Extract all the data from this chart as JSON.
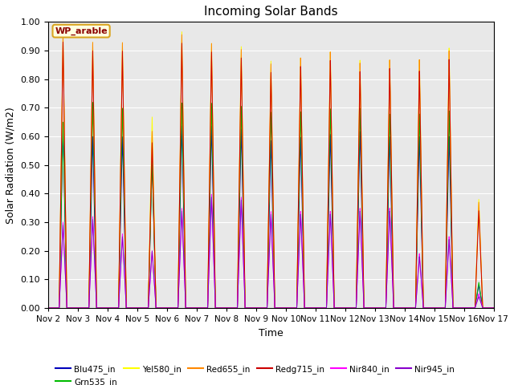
{
  "title": "Incoming Solar Bands",
  "xlabel": "Time",
  "ylabel": "Solar Radiation (W/m2)",
  "ylim": [
    0.0,
    1.0
  ],
  "yticks": [
    0.0,
    0.1,
    0.2,
    0.3,
    0.4,
    0.5,
    0.6,
    0.7,
    0.8,
    0.9,
    1.0
  ],
  "annotation_text": "WP_arable",
  "bg_color": "#e8e8e8",
  "legend_entries": [
    {
      "label": "Blu475_in",
      "color": "#0000bb"
    },
    {
      "label": "Grn535_in",
      "color": "#00bb00"
    },
    {
      "label": "Yel580_in",
      "color": "#ffff00"
    },
    {
      "label": "Red655_in",
      "color": "#ff8800"
    },
    {
      "label": "Redg715_in",
      "color": "#cc0000"
    },
    {
      "label": "Nir840_in",
      "color": "#ff00ff"
    },
    {
      "label": "Nir945_in",
      "color": "#8800cc"
    }
  ],
  "num_days": 15,
  "start_day": 2,
  "day_peak_values": {
    "Blu475_in": [
      0.63,
      0.6,
      0.6,
      0.53,
      0.64,
      0.64,
      0.63,
      0.59,
      0.6,
      0.61,
      0.62,
      0.6,
      0.6,
      0.6,
      0.08
    ],
    "Grn535_in": [
      0.65,
      0.72,
      0.7,
      0.51,
      0.72,
      0.72,
      0.71,
      0.69,
      0.69,
      0.7,
      0.7,
      0.68,
      0.68,
      0.69,
      0.09
    ],
    "Yel580_in": [
      0.96,
      0.93,
      0.93,
      0.67,
      0.97,
      0.93,
      0.92,
      0.87,
      0.88,
      0.9,
      0.87,
      0.87,
      0.87,
      0.91,
      0.38
    ],
    "Red655_in": [
      0.96,
      0.93,
      0.93,
      0.62,
      0.96,
      0.93,
      0.91,
      0.86,
      0.88,
      0.9,
      0.86,
      0.87,
      0.87,
      0.9,
      0.37
    ],
    "Redg715_in": [
      0.93,
      0.9,
      0.9,
      0.58,
      0.93,
      0.9,
      0.88,
      0.83,
      0.85,
      0.87,
      0.83,
      0.84,
      0.83,
      0.87,
      0.34
    ],
    "Nir840_in": [
      0.3,
      0.32,
      0.26,
      0.2,
      0.35,
      0.4,
      0.39,
      0.34,
      0.34,
      0.34,
      0.35,
      0.35,
      0.19,
      0.25,
      0.05
    ],
    "Nir945_in": [
      0.29,
      0.31,
      0.25,
      0.2,
      0.34,
      0.39,
      0.38,
      0.33,
      0.33,
      0.33,
      0.34,
      0.34,
      0.18,
      0.24,
      0.04
    ]
  },
  "colors": {
    "Blu475_in": "#0000bb",
    "Grn535_in": "#00bb00",
    "Yel580_in": "#ffff00",
    "Red655_in": "#ff8800",
    "Redg715_in": "#cc0000",
    "Nir840_in": "#ff00ff",
    "Nir945_in": "#8800cc"
  }
}
